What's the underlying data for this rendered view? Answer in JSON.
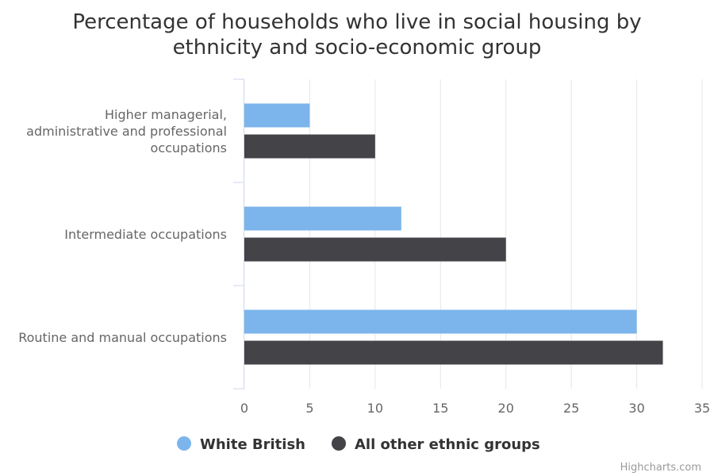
{
  "chart_data": {
    "type": "bar",
    "orientation": "horizontal",
    "title_lines": [
      "Percentage of households who live in social housing by",
      "ethnicity and socio-economic group"
    ],
    "categories": [
      [
        "Higher managerial,",
        "administrative and professional",
        "occupations"
      ],
      [
        "Intermediate occupations"
      ],
      [
        "Routine and manual occupations"
      ]
    ],
    "series": [
      {
        "name": "White British",
        "color": "#7cb5ec",
        "values": [
          5,
          12,
          30
        ]
      },
      {
        "name": "All other ethnic groups",
        "color": "#434348",
        "values": [
          10,
          20,
          32
        ]
      }
    ],
    "xlim": [
      0,
      35
    ],
    "ticks": [
      0,
      5,
      10,
      15,
      20,
      25,
      30,
      35
    ],
    "grid": true,
    "legend_position": "bottom-center"
  },
  "credit": "Highcharts.com"
}
